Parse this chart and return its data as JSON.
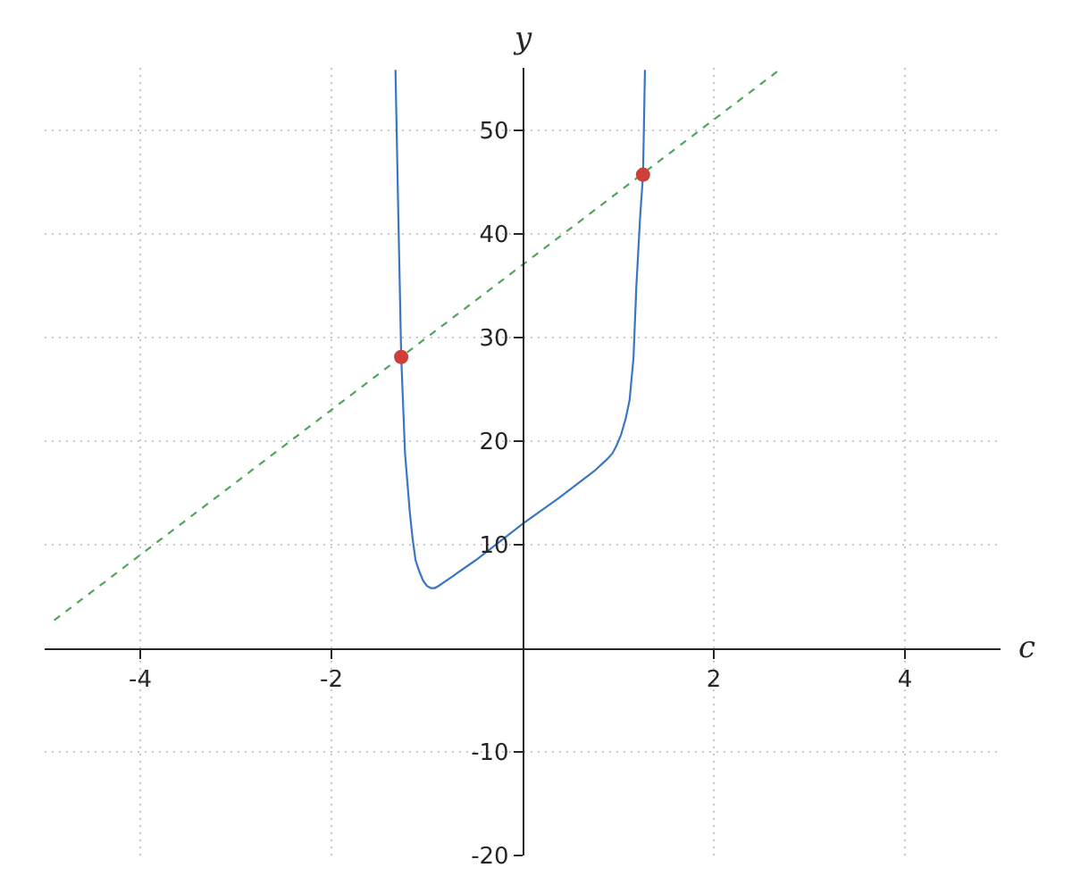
{
  "chart_data": {
    "type": "line",
    "xlabel": "c",
    "ylabel": "y",
    "xlim": [
      -5,
      5
    ],
    "ylim": [
      -20,
      56
    ],
    "xticks": [
      -4,
      -2,
      2,
      4
    ],
    "yticks": [
      -20,
      -10,
      10,
      20,
      30,
      40,
      50
    ],
    "grid": true,
    "series": [
      {
        "line_style": "solid",
        "color": "#3a76c4",
        "x": [
          -1.33,
          -1.3,
          -1.27,
          -1.23,
          -1.2,
          -1.18,
          -1.15,
          -1.12,
          -1.08,
          -1.04,
          -1.0,
          -0.96,
          -0.92,
          -0.88,
          -0.8,
          -0.49,
          0.0,
          0.38,
          0.75,
          0.88,
          0.94,
          0.98,
          1.03,
          1.08,
          1.12,
          1.16,
          1.19,
          1.23,
          1.26,
          1.28
        ],
        "values": [
          55.8,
          41.7,
          28.1,
          18.8,
          15.4,
          13.1,
          10.5,
          8.5,
          7.4,
          6.5,
          6.0,
          5.8,
          5.8,
          6.0,
          6.5,
          8.5,
          12.0,
          14.5,
          17.1,
          18.2,
          18.8,
          19.5,
          20.6,
          22.2,
          24.0,
          28.0,
          34.9,
          41.7,
          45.7,
          55.8
        ]
      },
      {
        "line_style": "dashed",
        "color": "#4fa65b",
        "x": [
          -4.9,
          2.7
        ],
        "values": [
          2.7,
          55.9
        ]
      },
      {
        "type": "scatter",
        "marker": "circle",
        "color": "#cc3f3a",
        "x": [
          -1.27,
          1.26
        ],
        "values": [
          28.1,
          45.7
        ]
      }
    ]
  }
}
